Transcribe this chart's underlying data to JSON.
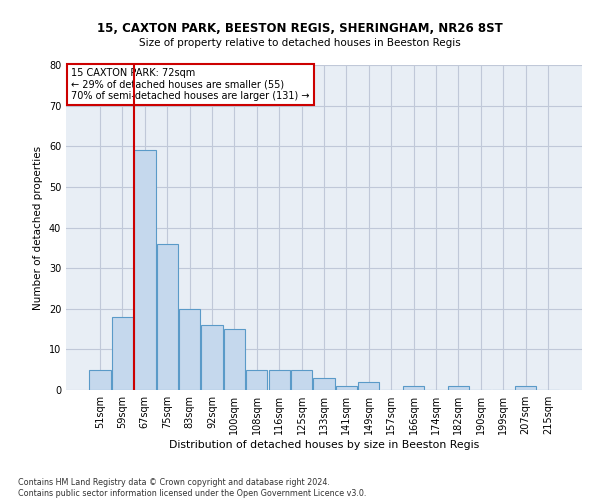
{
  "title1": "15, CAXTON PARK, BEESTON REGIS, SHERINGHAM, NR26 8ST",
  "title2": "Size of property relative to detached houses in Beeston Regis",
  "xlabel": "Distribution of detached houses by size in Beeston Regis",
  "ylabel": "Number of detached properties",
  "footnote": "Contains HM Land Registry data © Crown copyright and database right 2024.\nContains public sector information licensed under the Open Government Licence v3.0.",
  "bin_labels": [
    "51sqm",
    "59sqm",
    "67sqm",
    "75sqm",
    "83sqm",
    "92sqm",
    "100sqm",
    "108sqm",
    "116sqm",
    "125sqm",
    "133sqm",
    "141sqm",
    "149sqm",
    "157sqm",
    "166sqm",
    "174sqm",
    "182sqm",
    "190sqm",
    "199sqm",
    "207sqm",
    "215sqm"
  ],
  "bar_values": [
    5,
    18,
    59,
    36,
    20,
    16,
    15,
    5,
    5,
    5,
    3,
    1,
    2,
    0,
    1,
    0,
    1,
    0,
    0,
    1,
    0
  ],
  "bar_color": "#c5d8ed",
  "bar_edge_color": "#5a9ac8",
  "grid_color": "#c0c8d8",
  "bg_color": "#e8eef5",
  "vline_bin_index": 2,
  "vline_color": "#cc0000",
  "annotation_text": "15 CAXTON PARK: 72sqm\n← 29% of detached houses are smaller (55)\n70% of semi-detached houses are larger (131) →",
  "annotation_box_color": "#cc0000",
  "ylim": [
    0,
    80
  ],
  "yticks": [
    0,
    10,
    20,
    30,
    40,
    50,
    60,
    70,
    80
  ],
  "title1_fontsize": 8.5,
  "title2_fontsize": 7.5,
  "ylabel_fontsize": 7.5,
  "xlabel_fontsize": 7.8,
  "tick_fontsize": 7.0,
  "footnote_fontsize": 5.8
}
